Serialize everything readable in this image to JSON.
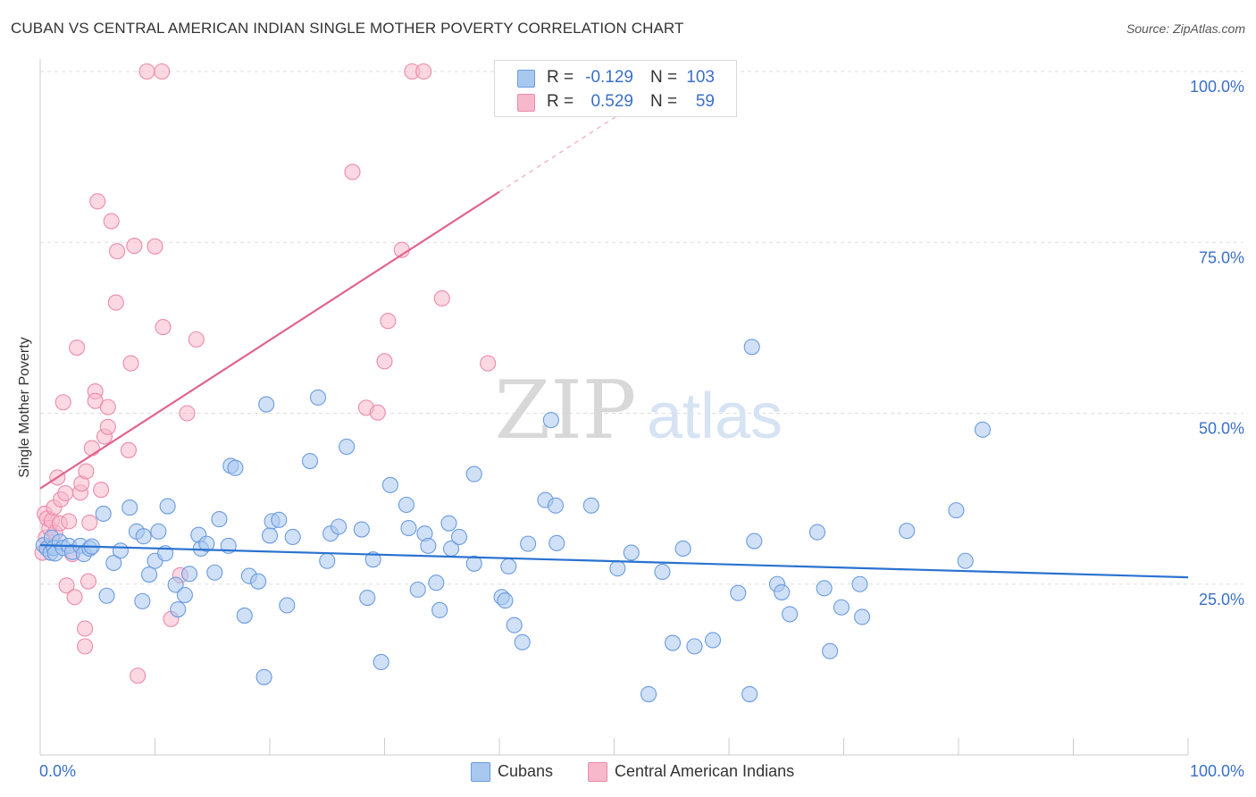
{
  "header": {
    "title": "CUBAN VS CENTRAL AMERICAN INDIAN SINGLE MOTHER POVERTY CORRELATION CHART",
    "source": "Source: ZipAtlas.com"
  },
  "watermark": {
    "zip": "ZIP",
    "atlas": "atlas"
  },
  "stats": {
    "rows": [
      {
        "r_label": "R =",
        "r_value": "-0.129",
        "n_label": "N =",
        "n_value": "103"
      },
      {
        "r_label": "R =",
        "r_value": "0.529",
        "n_label": "N =",
        "n_value": "59"
      }
    ]
  },
  "legend": {
    "items": [
      {
        "label": "Cubans"
      },
      {
        "label": "Central American Indians"
      }
    ]
  },
  "colors": {
    "blue_fill": "#a9c8f0",
    "blue_stroke": "#6a9be0",
    "blue_line": "#2a72d0",
    "pink_fill": "#f7b8cb",
    "pink_stroke": "#ec8aaa",
    "pink_line": "#e0648e",
    "tick_text": "#3a6fc9",
    "grid": "#dddddd"
  },
  "chart_data": {
    "type": "scatter",
    "title": "CUBAN VS CENTRAL AMERICAN INDIAN SINGLE MOTHER POVERTY CORRELATION CHART",
    "xlabel": "",
    "ylabel": "Single Mother Poverty",
    "xlim": [
      0,
      100
    ],
    "ylim": [
      0,
      100
    ],
    "x_tick_labels": [
      "0.0%",
      "100.0%"
    ],
    "y_ticks": [
      25,
      50,
      75,
      100
    ],
    "y_tick_labels": [
      "25.0%",
      "50.0%",
      "75.0%",
      "100.0%"
    ],
    "grid": true,
    "legend_position": "bottom-center",
    "series": [
      {
        "name": "Cubans",
        "color": "#a9c8f0",
        "trend": {
          "x0": 0,
          "y0": 30.7,
          "x1": 100,
          "y1": 26.0,
          "dashed_from": null
        },
        "points": [
          [
            0.3,
            30.7
          ],
          [
            0.6,
            30.2
          ],
          [
            0.9,
            29.6
          ],
          [
            1.0,
            31.8
          ],
          [
            1.2,
            30.3
          ],
          [
            1.3,
            29.5
          ],
          [
            1.7,
            31.2
          ],
          [
            2.0,
            30.3
          ],
          [
            2.5,
            30.6
          ],
          [
            2.8,
            29.7
          ],
          [
            3.5,
            30.6
          ],
          [
            3.8,
            29.4
          ],
          [
            4.3,
            30.2
          ],
          [
            4.5,
            30.5
          ],
          [
            5.5,
            35.3
          ],
          [
            5.8,
            23.3
          ],
          [
            6.4,
            28.1
          ],
          [
            7.0,
            29.9
          ],
          [
            7.8,
            36.2
          ],
          [
            8.4,
            32.7
          ],
          [
            8.9,
            22.5
          ],
          [
            9.0,
            32.0
          ],
          [
            9.5,
            26.4
          ],
          [
            10.0,
            28.4
          ],
          [
            10.3,
            32.7
          ],
          [
            10.9,
            29.5
          ],
          [
            11.1,
            36.4
          ],
          [
            11.8,
            24.9
          ],
          [
            12.0,
            21.3
          ],
          [
            12.6,
            23.4
          ],
          [
            13.0,
            26.5
          ],
          [
            13.8,
            32.2
          ],
          [
            14.0,
            30.2
          ],
          [
            14.5,
            30.9
          ],
          [
            15.2,
            26.7
          ],
          [
            15.6,
            34.5
          ],
          [
            16.4,
            30.6
          ],
          [
            16.6,
            42.3
          ],
          [
            17.0,
            42.0
          ],
          [
            17.8,
            20.4
          ],
          [
            18.2,
            26.2
          ],
          [
            19.0,
            25.4
          ],
          [
            19.5,
            11.4
          ],
          [
            19.7,
            51.3
          ],
          [
            20.0,
            32.1
          ],
          [
            20.2,
            34.2
          ],
          [
            20.8,
            34.4
          ],
          [
            21.5,
            21.9
          ],
          [
            22.0,
            31.9
          ],
          [
            23.5,
            43.0
          ],
          [
            24.2,
            52.3
          ],
          [
            25.0,
            28.4
          ],
          [
            25.3,
            32.4
          ],
          [
            26.0,
            33.4
          ],
          [
            26.7,
            45.1
          ],
          [
            28.0,
            33.0
          ],
          [
            28.5,
            23.0
          ],
          [
            29.0,
            28.6
          ],
          [
            29.7,
            13.6
          ],
          [
            30.5,
            39.5
          ],
          [
            31.9,
            36.6
          ],
          [
            32.1,
            33.2
          ],
          [
            32.9,
            24.2
          ],
          [
            33.5,
            32.4
          ],
          [
            33.8,
            30.6
          ],
          [
            34.5,
            25.2
          ],
          [
            34.8,
            21.2
          ],
          [
            35.6,
            33.9
          ],
          [
            35.8,
            30.2
          ],
          [
            36.5,
            31.9
          ],
          [
            37.8,
            28.0
          ],
          [
            37.8,
            41.1
          ],
          [
            40.2,
            23.1
          ],
          [
            40.5,
            22.6
          ],
          [
            40.8,
            27.6
          ],
          [
            41.3,
            19.0
          ],
          [
            42.0,
            16.5
          ],
          [
            42.5,
            30.9
          ],
          [
            44.0,
            37.3
          ],
          [
            44.5,
            49.0
          ],
          [
            44.9,
            36.5
          ],
          [
            45.0,
            31.0
          ],
          [
            48.0,
            36.5
          ],
          [
            50.3,
            27.3
          ],
          [
            51.5,
            29.6
          ],
          [
            53.0,
            8.9
          ],
          [
            54.2,
            26.8
          ],
          [
            55.1,
            16.4
          ],
          [
            56.0,
            30.2
          ],
          [
            57.0,
            15.9
          ],
          [
            58.6,
            16.8
          ],
          [
            60.8,
            23.7
          ],
          [
            61.8,
            8.9
          ],
          [
            62.0,
            59.7
          ],
          [
            62.2,
            31.3
          ],
          [
            64.2,
            25.0
          ],
          [
            64.6,
            23.8
          ],
          [
            65.3,
            20.6
          ],
          [
            67.7,
            32.6
          ],
          [
            68.3,
            24.4
          ],
          [
            68.8,
            15.2
          ],
          [
            69.8,
            21.6
          ],
          [
            71.4,
            25.0
          ],
          [
            71.6,
            20.2
          ],
          [
            75.5,
            32.8
          ],
          [
            79.8,
            35.8
          ],
          [
            80.6,
            28.4
          ],
          [
            82.1,
            47.6
          ]
        ]
      },
      {
        "name": "Central American Indians",
        "color": "#f7b8cb",
        "trend": {
          "x0": 0,
          "y0": 39.0,
          "x1": 40.0,
          "y1": 82.4,
          "dashed_to_x": 55.6,
          "dashed_to_y": 99.3
        },
        "points": [
          [
            0.2,
            29.6
          ],
          [
            0.4,
            35.3
          ],
          [
            0.5,
            31.8
          ],
          [
            0.6,
            34.6
          ],
          [
            0.8,
            33.2
          ],
          [
            0.9,
            30.6
          ],
          [
            1.0,
            34.3
          ],
          [
            1.2,
            36.2
          ],
          [
            1.3,
            32.5
          ],
          [
            1.5,
            40.6
          ],
          [
            1.7,
            33.9
          ],
          [
            1.8,
            37.4
          ],
          [
            2.0,
            51.6
          ],
          [
            2.2,
            38.3
          ],
          [
            2.3,
            24.8
          ],
          [
            2.5,
            34.2
          ],
          [
            2.8,
            29.4
          ],
          [
            3.0,
            23.1
          ],
          [
            3.2,
            59.6
          ],
          [
            3.5,
            38.4
          ],
          [
            3.6,
            39.7
          ],
          [
            3.9,
            15.9
          ],
          [
            3.9,
            18.5
          ],
          [
            4.0,
            41.5
          ],
          [
            4.2,
            25.4
          ],
          [
            4.3,
            34.0
          ],
          [
            4.5,
            44.9
          ],
          [
            4.8,
            53.2
          ],
          [
            4.8,
            51.8
          ],
          [
            5.0,
            81.0
          ],
          [
            5.3,
            38.8
          ],
          [
            5.6,
            46.6
          ],
          [
            5.9,
            48.0
          ],
          [
            5.9,
            50.9
          ],
          [
            6.2,
            78.1
          ],
          [
            6.6,
            66.2
          ],
          [
            6.7,
            73.7
          ],
          [
            7.7,
            44.6
          ],
          [
            7.9,
            57.3
          ],
          [
            8.2,
            74.5
          ],
          [
            8.5,
            11.6
          ],
          [
            9.3,
            100.0
          ],
          [
            10.0,
            74.4
          ],
          [
            10.6,
            100.0
          ],
          [
            10.7,
            62.6
          ],
          [
            11.4,
            19.9
          ],
          [
            12.2,
            26.3
          ],
          [
            12.8,
            50.0
          ],
          [
            13.6,
            60.8
          ],
          [
            27.2,
            85.3
          ],
          [
            28.4,
            50.8
          ],
          [
            29.4,
            50.1
          ],
          [
            30.0,
            57.6
          ],
          [
            30.3,
            63.5
          ],
          [
            31.5,
            73.9
          ],
          [
            32.4,
            100.0
          ],
          [
            33.4,
            100.0
          ],
          [
            35.0,
            66.8
          ],
          [
            39.0,
            57.3
          ]
        ]
      }
    ]
  }
}
